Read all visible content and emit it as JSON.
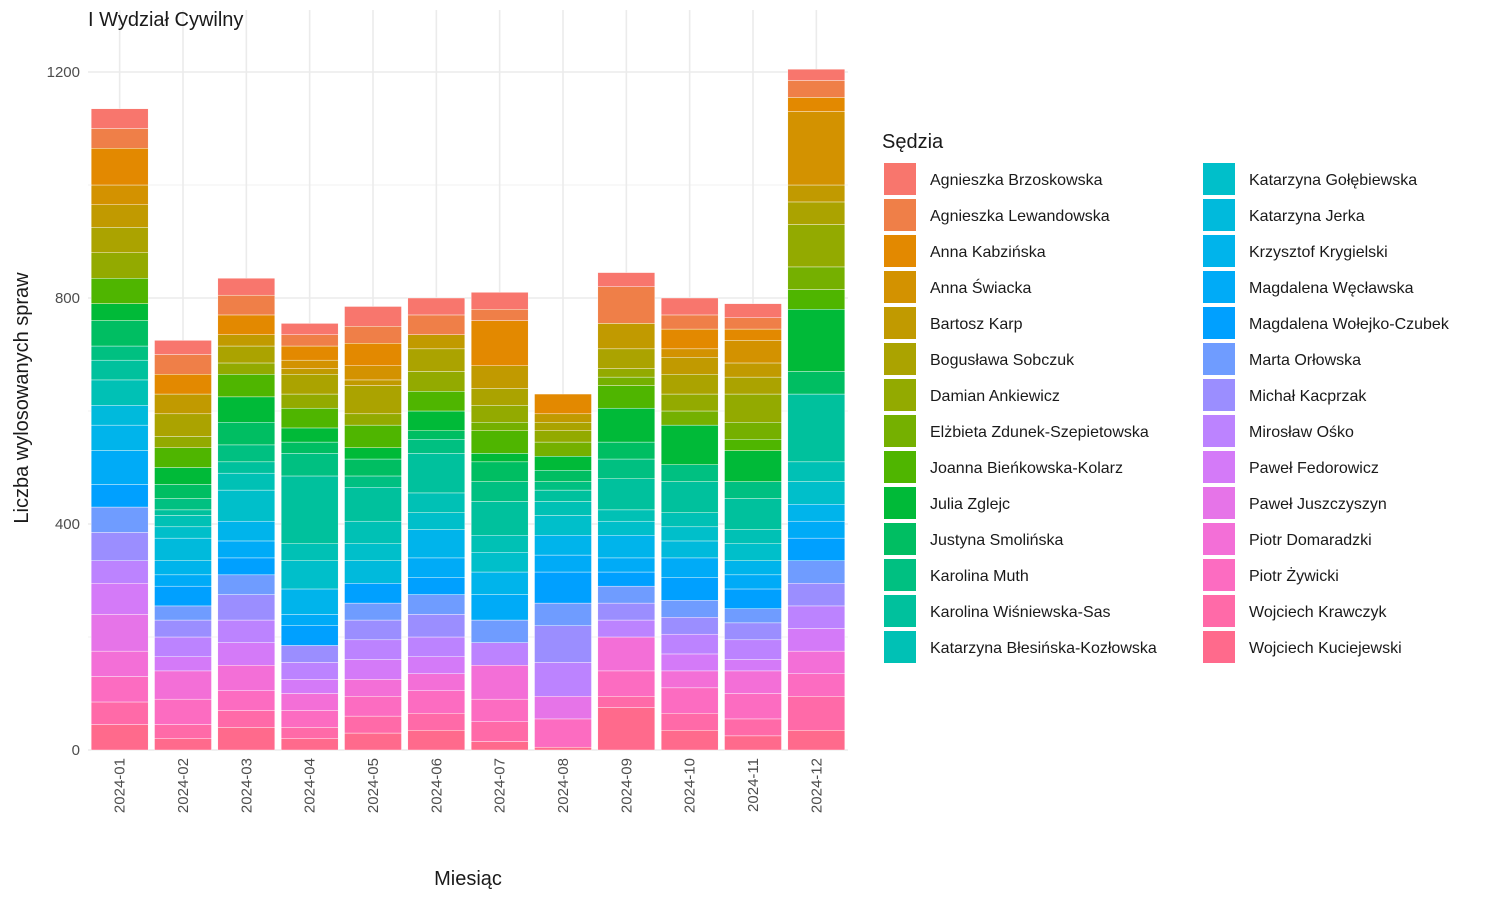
{
  "chart_data": {
    "type": "bar",
    "stacked": true,
    "title": "I Wydział Cywilny",
    "xlabel": "Miesiąc",
    "ylabel": "Liczba wylosowanych spraw",
    "legend_title": "Sędzia",
    "legend_position": "right",
    "grid": true,
    "ylim": [
      0,
      1250
    ],
    "yticks": [
      0,
      400,
      800,
      1200
    ],
    "categories": [
      "2024-01",
      "2024-02",
      "2024-03",
      "2024-04",
      "2024-05",
      "2024-06",
      "2024-07",
      "2024-08",
      "2024-09",
      "2024-10",
      "2024-11",
      "2024-12"
    ],
    "series": [
      {
        "name": "Agnieszka Brzoskowska",
        "color": "#F8766D",
        "values": [
          35,
          25,
          30,
          20,
          35,
          30,
          30,
          0,
          25,
          30,
          25,
          20
        ]
      },
      {
        "name": "Agnieszka Lewandowska",
        "color": "#EF7F48",
        "values": [
          35,
          35,
          35,
          20,
          30,
          35,
          20,
          0,
          65,
          25,
          20,
          30
        ]
      },
      {
        "name": "Anna Kabzińska",
        "color": "#E38900",
        "values": [
          65,
          35,
          35,
          25,
          40,
          0,
          80,
          35,
          0,
          35,
          20,
          25
        ]
      },
      {
        "name": "Anna Świacka",
        "color": "#D39200",
        "values": [
          35,
          0,
          0,
          15,
          25,
          0,
          0,
          0,
          0,
          15,
          40,
          130
        ]
      },
      {
        "name": "Bartosz Karp",
        "color": "#C19A00",
        "values": [
          40,
          35,
          20,
          10,
          10,
          25,
          40,
          15,
          45,
          30,
          25,
          30
        ]
      },
      {
        "name": "Bogusława Sobczuk",
        "color": "#ABA300",
        "values": [
          45,
          40,
          30,
          35,
          50,
          40,
          30,
          15,
          35,
          35,
          30,
          40
        ]
      },
      {
        "name": "Damian Ankiewicz",
        "color": "#93AA00",
        "values": [
          45,
          20,
          20,
          25,
          20,
          35,
          30,
          20,
          15,
          30,
          50,
          75
        ]
      },
      {
        "name": "Elżbieta Zdunek-Szepietowska",
        "color": "#75B000",
        "values": [
          0,
          0,
          0,
          0,
          0,
          0,
          15,
          25,
          15,
          25,
          30,
          40
        ]
      },
      {
        "name": "Joanna Bieńkowska-Kolarz",
        "color": "#4FB500",
        "values": [
          45,
          35,
          40,
          35,
          40,
          35,
          40,
          0,
          40,
          0,
          20,
          35
        ]
      },
      {
        "name": "Julia Zglejc",
        "color": "#00BA38",
        "values": [
          30,
          30,
          45,
          25,
          20,
          35,
          15,
          25,
          60,
          70,
          55,
          110
        ]
      },
      {
        "name": "Justyna Smolińska",
        "color": "#00BE62",
        "values": [
          45,
          25,
          40,
          20,
          30,
          15,
          35,
          20,
          30,
          0,
          0,
          40
        ]
      },
      {
        "name": "Karolina Muth",
        "color": "#00C081",
        "values": [
          25,
          20,
          30,
          40,
          20,
          25,
          35,
          15,
          35,
          30,
          30,
          0
        ]
      },
      {
        "name": "Karolina Wiśniewska-Sas",
        "color": "#00C19D",
        "values": [
          35,
          10,
          20,
          120,
          60,
          70,
          60,
          20,
          55,
          55,
          55,
          120
        ]
      },
      {
        "name": "Katarzyna Błesińska-Kozłowska",
        "color": "#00C1B5",
        "values": [
          45,
          20,
          30,
          30,
          40,
          35,
          30,
          25,
          20,
          25,
          25,
          35
        ]
      },
      {
        "name": "Katarzyna Gołębiewska",
        "color": "#00BFCA",
        "values": [
          0,
          20,
          55,
          50,
          30,
          30,
          35,
          35,
          25,
          25,
          30,
          40
        ]
      },
      {
        "name": "Katarzyna Jerka",
        "color": "#00BADC",
        "values": [
          35,
          40,
          0,
          0,
          40,
          0,
          0,
          0,
          0,
          30,
          0,
          0
        ]
      },
      {
        "name": "Krzysztof Krygielski",
        "color": "#00B4EB",
        "values": [
          45,
          25,
          35,
          45,
          0,
          50,
          40,
          35,
          40,
          0,
          25,
          30
        ]
      },
      {
        "name": "Magdalena Węcławska",
        "color": "#00ABF7",
        "values": [
          60,
          20,
          30,
          20,
          0,
          35,
          45,
          30,
          25,
          35,
          25,
          30
        ]
      },
      {
        "name": "Magdalena Wołejko-Czubek",
        "color": "#00A0FF",
        "values": [
          40,
          35,
          30,
          35,
          35,
          30,
          0,
          55,
          25,
          40,
          35,
          40
        ]
      },
      {
        "name": "Marta Orłowska",
        "color": "#6F9CFF",
        "values": [
          45,
          25,
          35,
          0,
          30,
          35,
          40,
          40,
          30,
          30,
          25,
          40
        ]
      },
      {
        "name": "Michał Kacprzak",
        "color": "#9B8EFF",
        "values": [
          50,
          30,
          45,
          30,
          35,
          40,
          0,
          65,
          30,
          30,
          30,
          40
        ]
      },
      {
        "name": "Mirosław Ośko",
        "color": "#BC83FF",
        "values": [
          40,
          35,
          40,
          30,
          35,
          35,
          40,
          60,
          30,
          35,
          35,
          40
        ]
      },
      {
        "name": "Paweł Fedorowicz",
        "color": "#D47AF8",
        "values": [
          55,
          25,
          40,
          25,
          35,
          30,
          0,
          0,
          0,
          30,
          20,
          40
        ]
      },
      {
        "name": "Paweł Juszczyszyn",
        "color": "#E674E8",
        "values": [
          65,
          0,
          0,
          0,
          0,
          0,
          0,
          40,
          0,
          0,
          0,
          0
        ]
      },
      {
        "name": "Piotr Domaradzki",
        "color": "#F36FD7",
        "values": [
          45,
          50,
          45,
          30,
          30,
          30,
          60,
          0,
          60,
          30,
          40,
          40
        ]
      },
      {
        "name": "Piotr Żywicki",
        "color": "#FC6CC1",
        "values": [
          45,
          45,
          35,
          30,
          35,
          40,
          40,
          50,
          45,
          45,
          45,
          40
        ]
      },
      {
        "name": "Wojciech Krawczyk",
        "color": "#FF6AA8",
        "values": [
          40,
          25,
          30,
          20,
          30,
          30,
          35,
          0,
          20,
          30,
          30,
          60
        ]
      },
      {
        "name": "Wojciech Kuciejewski",
        "color": "#FF6A8C",
        "values": [
          45,
          20,
          40,
          20,
          30,
          35,
          15,
          5,
          75,
          35,
          25,
          35
        ]
      }
    ]
  }
}
